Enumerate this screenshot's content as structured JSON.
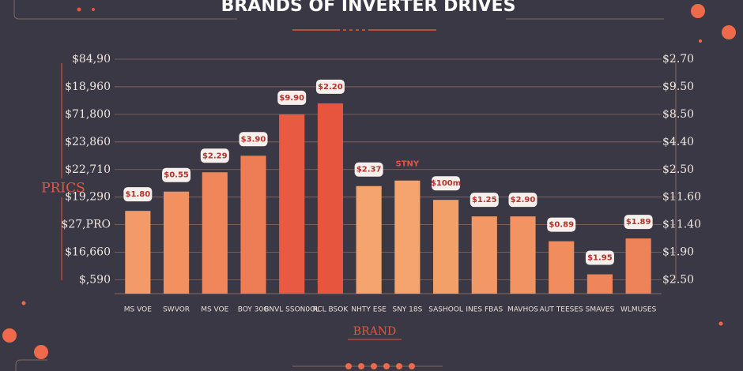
{
  "chart_data": {
    "type": "bar",
    "title": "BRANDS OF INVERTER DRIVES",
    "y_label": "PRICS",
    "x_label": "BRAND",
    "categories": [
      "MS VOE",
      "SWVOR",
      "MS VOE",
      "BOY 30G",
      "BNVL SSON0OL",
      "RCL BSOK",
      "NHTY ESE",
      "SNY 18S",
      "SASHOOL",
      "INES FBAS",
      "MAVHOS",
      "AUT TEESES",
      "SMAVES",
      "WLMUSES"
    ],
    "values": [
      3.0,
      3.7,
      4.4,
      5.0,
      6.5,
      6.9,
      3.9,
      4.1,
      3.4,
      2.8,
      2.8,
      1.9,
      0.7,
      2.0
    ],
    "annotations": [
      "$1.80",
      "$0.55",
      "$2.29",
      "$3.90",
      "$9.90",
      "$2.20",
      "$2.37",
      "STNY",
      "$100m",
      "$1.25",
      "$2.90",
      "$0.89",
      "$1.95",
      "$1.89"
    ],
    "colors": [
      "#f39a68",
      "#f2905f",
      "#f08659",
      "#ee7c54",
      "#e85a42",
      "#e8553f",
      "#f4a46c",
      "#f4a46c",
      "#f3a068",
      "#f29866",
      "#f29462",
      "#f08c5e",
      "#ef865a",
      "#ee8258"
    ],
    "ylim": [
      0,
      8.5
    ],
    "yticks": [
      {
        "value": 0.5,
        "label": "$,590"
      },
      {
        "value": 1.5,
        "label": "$16,660"
      },
      {
        "value": 2.5,
        "label": "$27,PRO"
      },
      {
        "value": 3.5,
        "label": "$19,290"
      },
      {
        "value": 4.5,
        "label": "$22,710"
      },
      {
        "value": 5.5,
        "label": "$23,860"
      },
      {
        "value": 6.5,
        "label": "$71,800"
      },
      {
        "value": 7.5,
        "label": "$18,960"
      },
      {
        "value": 8.5,
        "label": "$84,90"
      }
    ],
    "y2ticks": [
      {
        "value": 0.5,
        "label": "$2.50"
      },
      {
        "value": 1.5,
        "label": "$1.90"
      },
      {
        "value": 2.5,
        "label": "$11.40"
      },
      {
        "value": 3.5,
        "label": "$11.60"
      },
      {
        "value": 4.5,
        "label": "$2.50"
      },
      {
        "value": 5.5,
        "label": "$4.40"
      },
      {
        "value": 6.5,
        "label": "$8.50"
      },
      {
        "value": 7.5,
        "label": "$9.50"
      },
      {
        "value": 8.5,
        "label": "$2.70"
      }
    ],
    "grid": true
  }
}
